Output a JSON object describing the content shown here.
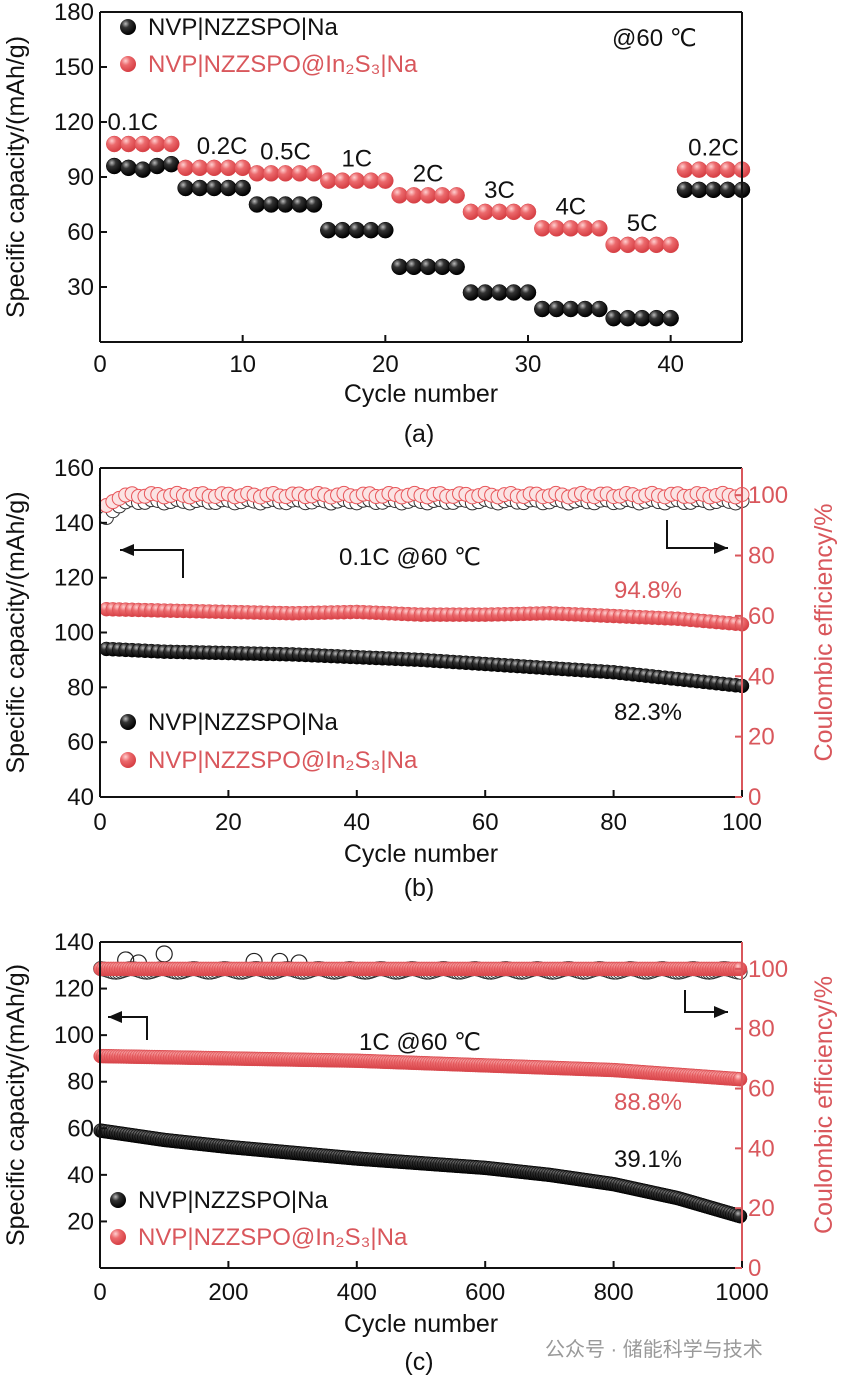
{
  "colors": {
    "black_series": "#1a1a1a",
    "red_series": "#e8565a",
    "right_axis": "#d9575c",
    "watermark": "#999999"
  },
  "watermark": "公众号 · 储能科学与技术",
  "chart_data": [
    {
      "type": "scatter",
      "panel_label": "(a)",
      "xlabel": "Cycle number",
      "ylabel": "Specific capacity/(mAh/g)",
      "xlim": [
        0,
        45
      ],
      "ylim": [
        0,
        180
      ],
      "xticks": [
        0,
        10,
        20,
        30,
        40
      ],
      "yticks": [
        30,
        60,
        90,
        120,
        150,
        180
      ],
      "annotation": "@60 ℃",
      "legend": "top-left",
      "rate_segments": [
        {
          "label": "0.1C",
          "cycles": [
            1,
            5
          ]
        },
        {
          "label": "0.2C",
          "cycles": [
            6,
            10
          ]
        },
        {
          "label": "0.5C",
          "cycles": [
            11,
            15
          ]
        },
        {
          "label": "1C",
          "cycles": [
            16,
            20
          ]
        },
        {
          "label": "2C",
          "cycles": [
            21,
            25
          ]
        },
        {
          "label": "3C",
          "cycles": [
            26,
            30
          ]
        },
        {
          "label": "4C",
          "cycles": [
            31,
            35
          ]
        },
        {
          "label": "5C",
          "cycles": [
            36,
            40
          ]
        },
        {
          "label": "0.2C",
          "cycles": [
            41,
            45
          ]
        }
      ],
      "series": [
        {
          "name": "NVP|NZZSPO|Na",
          "color": "#1a1a1a",
          "x": [
            1,
            2,
            3,
            4,
            5,
            6,
            7,
            8,
            9,
            10,
            11,
            12,
            13,
            14,
            15,
            16,
            17,
            18,
            19,
            20,
            21,
            22,
            23,
            24,
            25,
            26,
            27,
            28,
            29,
            30,
            31,
            32,
            33,
            34,
            35,
            36,
            37,
            38,
            39,
            40,
            41,
            42,
            43,
            44,
            45
          ],
          "y": [
            96,
            95,
            94,
            96,
            97,
            84,
            84,
            84,
            84,
            84,
            75,
            75,
            75,
            75,
            75,
            61,
            61,
            61,
            61,
            61,
            41,
            41,
            41,
            41,
            41,
            27,
            27,
            27,
            27,
            27,
            18,
            18,
            18,
            18,
            18,
            13,
            13,
            13,
            13,
            13,
            83,
            83,
            83,
            83,
            83
          ]
        },
        {
          "name": "NVP|NZZSPO@In₂S₃|Na",
          "color": "#e8565a",
          "x": [
            1,
            2,
            3,
            4,
            5,
            6,
            7,
            8,
            9,
            10,
            11,
            12,
            13,
            14,
            15,
            16,
            17,
            18,
            19,
            20,
            21,
            22,
            23,
            24,
            25,
            26,
            27,
            28,
            29,
            30,
            31,
            32,
            33,
            34,
            35,
            36,
            37,
            38,
            39,
            40,
            41,
            42,
            43,
            44,
            45
          ],
          "y": [
            108,
            108,
            108,
            108,
            108,
            95,
            95,
            95,
            95,
            95,
            92,
            92,
            92,
            92,
            92,
            88,
            88,
            88,
            88,
            88,
            80,
            80,
            80,
            80,
            80,
            71,
            71,
            71,
            71,
            71,
            62,
            62,
            62,
            62,
            62,
            53,
            53,
            53,
            53,
            53,
            94,
            94,
            94,
            94,
            94
          ]
        }
      ]
    },
    {
      "type": "scatter",
      "panel_label": "(b)",
      "xlabel": "Cycle number",
      "ylabel": "Specific capacity/(mAh/g)",
      "y2label": "Coulombic efficiency/%",
      "xlim": [
        0,
        100
      ],
      "ylim": [
        40,
        160
      ],
      "y2lim": [
        0,
        109
      ],
      "xticks": [
        0,
        20,
        40,
        60,
        80,
        100
      ],
      "yticks": [
        40,
        60,
        80,
        100,
        120,
        140,
        160
      ],
      "y2ticks": [
        0,
        20,
        40,
        60,
        80,
        100
      ],
      "annotation": "0.1C @60 ℃",
      "retention_labels": {
        "red": "94.8%",
        "black": "82.3%"
      },
      "legend": "bottom-left",
      "series": [
        {
          "name": "NVP|NZZSPO|Na",
          "color": "#1a1a1a",
          "axis": "left",
          "x": [
            1,
            10,
            20,
            30,
            40,
            50,
            60,
            70,
            80,
            90,
            100
          ],
          "y": [
            94,
            93,
            92.5,
            92,
            91,
            90,
            88.5,
            87,
            85.5,
            83,
            80.5
          ]
        },
        {
          "name": "NVP|NZZSPO@In₂S₃|Na",
          "color": "#e8565a",
          "axis": "left",
          "x": [
            1,
            10,
            20,
            30,
            40,
            50,
            60,
            70,
            80,
            90,
            100
          ],
          "y": [
            108.5,
            108,
            107.5,
            107,
            107.5,
            106.5,
            106.5,
            107,
            106,
            105,
            103
          ]
        },
        {
          "name": "Coulombic efficiency (NVP|NZZSPO|Na)",
          "color": "#1a1a1a",
          "axis": "right",
          "hollow": true,
          "x": [
            1,
            2,
            3,
            5,
            10,
            100
          ],
          "y": [
            92,
            95,
            97,
            98,
            98,
            98
          ]
        },
        {
          "name": "Coulombic efficiency (NVP|NZZSPO@In₂S₃|Na)",
          "color": "#e8565a",
          "axis": "right",
          "hollow": true,
          "x": [
            1,
            2,
            3,
            5,
            10,
            100
          ],
          "y": [
            96,
            98,
            99.5,
            100,
            100,
            100
          ]
        }
      ]
    },
    {
      "type": "scatter",
      "panel_label": "(c)",
      "xlabel": "Cycle number",
      "ylabel": "Specific capacity/(mAh/g)",
      "y2label": "Coulombic efficiency/%",
      "xlim": [
        0,
        1000
      ],
      "ylim": [
        0,
        140
      ],
      "y2lim": [
        0,
        109
      ],
      "xticks": [
        0,
        200,
        400,
        600,
        800,
        1000
      ],
      "yticks": [
        20,
        40,
        60,
        80,
        100,
        120,
        140
      ],
      "y2ticks": [
        0,
        20,
        40,
        60,
        80,
        100
      ],
      "annotation": "1C @60 ℃",
      "retention_labels": {
        "red": "88.8%",
        "black": "39.1%"
      },
      "legend": "bottom-left",
      "series": [
        {
          "name": "NVP|NZZSPO|Na",
          "color": "#1a1a1a",
          "axis": "left",
          "x": [
            1,
            100,
            200,
            300,
            400,
            500,
            600,
            700,
            800,
            900,
            1000
          ],
          "y": [
            59,
            55,
            52,
            49.5,
            47,
            45,
            43,
            40,
            36,
            30,
            22
          ]
        },
        {
          "name": "NVP|NZZSPO@In₂S₃|Na",
          "color": "#e8565a",
          "axis": "left",
          "x": [
            1,
            100,
            200,
            300,
            400,
            500,
            600,
            700,
            800,
            900,
            1000
          ],
          "y": [
            91,
            90.5,
            90,
            89.5,
            89,
            88,
            87,
            86,
            85,
            83,
            81
          ]
        },
        {
          "name": "Coulombic efficiency (NVP|NZZSPO|Na)",
          "color": "#1a1a1a",
          "axis": "right",
          "hollow": true,
          "x": [
            1,
            1000
          ],
          "y": [
            99.5,
            99.5
          ],
          "outliers": [
            [
              40,
              103
            ],
            [
              60,
              102
            ],
            [
              100,
              105
            ],
            [
              240,
              102.5
            ],
            [
              280,
              102.5
            ],
            [
              310,
              102
            ]
          ]
        },
        {
          "name": "Coulombic efficiency (NVP|NZZSPO@In₂S₃|Na)",
          "color": "#e8565a",
          "axis": "right",
          "x": [
            1,
            1000
          ],
          "y": [
            100,
            100
          ]
        }
      ]
    }
  ]
}
